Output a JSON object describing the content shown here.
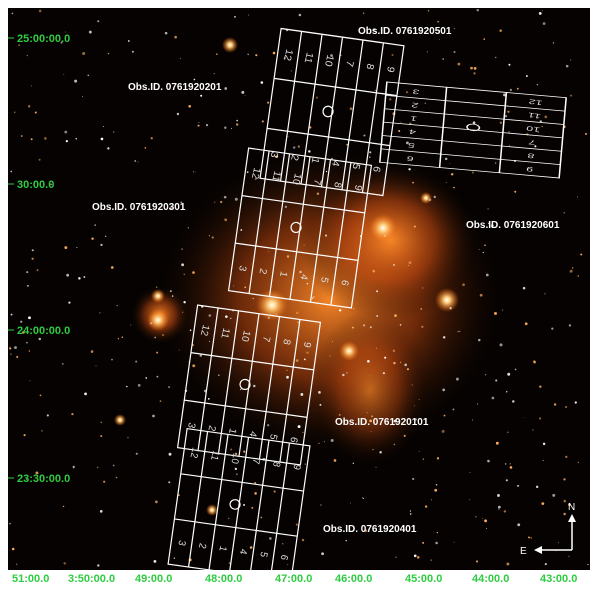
{
  "observations": [
    "Obs.ID. 0761920501",
    "Obs.ID. 0761920201",
    "Obs.ID. 0761920301",
    "Obs.ID. 0761920601",
    "Obs.ID. 0761920101",
    "Obs.ID. 0761920401"
  ],
  "dec_labels": [
    "25:00:00.0",
    "30:00.0",
    "24:00:00.0",
    "23:30:00.0"
  ],
  "ra_labels": [
    "51:00.0",
    "3:50:00.0",
    "49:00.0",
    "48:00.0",
    "47:00.0",
    "46:00.0",
    "45:00.0",
    "44:00.0",
    "43:00.0"
  ],
  "compass": {
    "north": "N",
    "east": "E"
  },
  "chip_labels": [
    "1",
    "2",
    "3",
    "4",
    "5",
    "6",
    "7",
    "8",
    "9",
    "10",
    "11",
    "12"
  ]
}
